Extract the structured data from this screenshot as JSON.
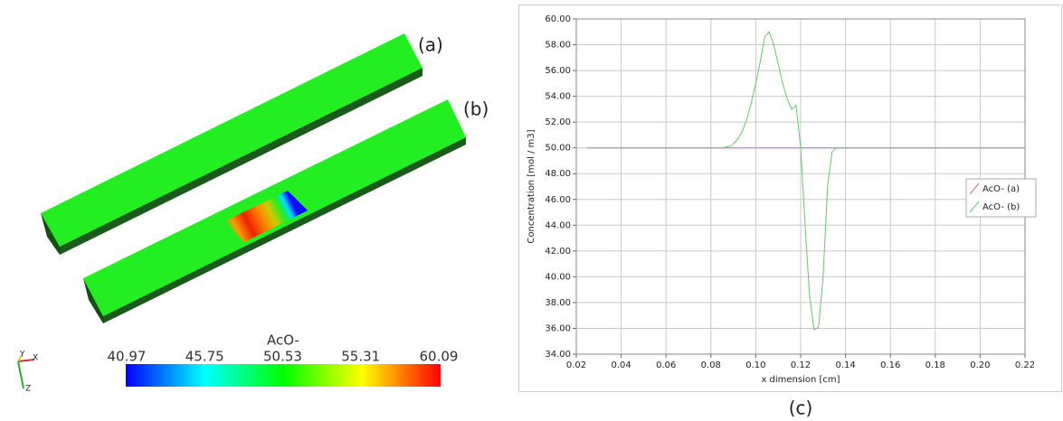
{
  "render": {
    "labels": [
      "(a)",
      "(b)"
    ],
    "axis_labels": [
      "Y",
      "X",
      "Z"
    ],
    "colorbar": {
      "title": "AcO-",
      "ticks": [
        40.97,
        45.75,
        50.53,
        55.31,
        60.09
      ]
    }
  },
  "caption": "(c)",
  "chart_data": {
    "type": "line",
    "x_label": "x dimension [cm]",
    "y_label": "Concentration [mol / m3]",
    "xlim": [
      0.02,
      0.22
    ],
    "xticks": [
      {
        "value": 0.02,
        "label": "0.02"
      },
      {
        "value": 0.04,
        "label": "0.04"
      },
      {
        "value": 0.06,
        "label": "0.06"
      },
      {
        "value": 0.08,
        "label": "0.08"
      },
      {
        "value": 0.1,
        "label": "0.10"
      },
      {
        "value": 0.12,
        "label": "0.12"
      },
      {
        "value": 0.14,
        "label": "0.14"
      },
      {
        "value": 0.16,
        "label": "0.16"
      },
      {
        "value": 0.18,
        "label": "0.18"
      },
      {
        "value": 0.2,
        "label": "0.20"
      },
      {
        "value": 0.22,
        "label": "0.22"
      }
    ],
    "ylim": [
      34,
      60
    ],
    "yticks": [
      {
        "value": 34,
        "label": "34.00"
      },
      {
        "value": 36,
        "label": "36.00"
      },
      {
        "value": 38,
        "label": "38.00"
      },
      {
        "value": 40,
        "label": "40.00"
      },
      {
        "value": 42,
        "label": "42.00"
      },
      {
        "value": 44,
        "label": "44.00"
      },
      {
        "value": 46,
        "label": "46.00"
      },
      {
        "value": 48,
        "label": "48.00"
      },
      {
        "value": 50,
        "label": "50.00"
      },
      {
        "value": 52,
        "label": "52.00"
      },
      {
        "value": 54,
        "label": "54.00"
      },
      {
        "value": 56,
        "label": "56.00"
      },
      {
        "value": 58,
        "label": "58.00"
      },
      {
        "value": 60,
        "label": "60.00"
      }
    ],
    "grid": true,
    "legend": "right",
    "series": [
      {
        "name": "AcO- (a)",
        "color": "#c070c0",
        "x": [
          0.025,
          0.22
        ],
        "values": [
          50,
          50
        ]
      },
      {
        "name": "AcO- (b)",
        "color": "#6cc46c",
        "x": [
          0.025,
          0.085,
          0.088,
          0.09,
          0.092,
          0.094,
          0.096,
          0.098,
          0.1,
          0.102,
          0.104,
          0.106,
          0.108,
          0.11,
          0.112,
          0.114,
          0.116,
          0.118,
          0.12,
          0.122,
          0.124,
          0.126,
          0.128,
          0.13,
          0.132,
          0.134,
          0.136,
          0.22
        ],
        "values": [
          50,
          50,
          50.1,
          50.3,
          50.7,
          51.3,
          52.2,
          53.5,
          55.0,
          56.7,
          58.6,
          59.0,
          58.0,
          56.5,
          55.0,
          53.8,
          53.0,
          53.3,
          50.0,
          44.0,
          38.5,
          35.9,
          36.1,
          40.0,
          47.0,
          49.7,
          50.0,
          50.0
        ]
      }
    ]
  }
}
